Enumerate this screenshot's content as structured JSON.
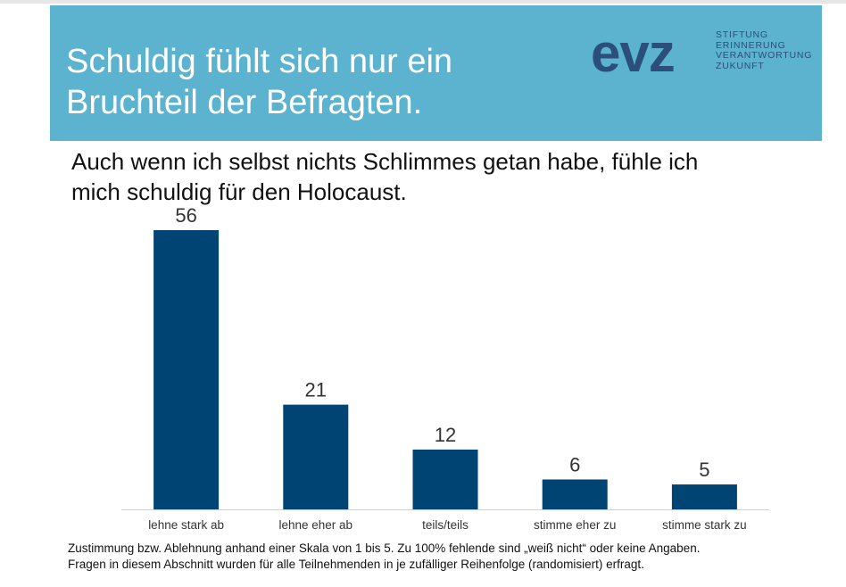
{
  "header": {
    "title": "Schuldig fühlt sich nur ein\nBruchteil der Befragten.",
    "background_color": "#5bb3d0",
    "logo": {
      "word": "evz",
      "lines": [
        "STIFTUNG",
        "ERINNERUNG",
        "VERANTWORTUNG",
        "ZUKUNFT"
      ]
    }
  },
  "chart_data": {
    "type": "bar",
    "title": "Auch wenn ich selbst nichts Schlimmes getan habe, fühle ich\nmich schuldig für den Holocaust.",
    "categories": [
      "lehne stark ab",
      "lehne eher ab",
      "teils/teils",
      "stimme eher zu",
      "stimme stark zu"
    ],
    "values": [
      56,
      21,
      12,
      6,
      5
    ],
    "data_labels": [
      "56",
      "21",
      "12",
      "6",
      "5"
    ],
    "xlabel": "",
    "ylabel": "",
    "ylim": [
      0,
      56
    ],
    "grid": false,
    "bar_color": "#004474"
  },
  "footnote": {
    "line1": "Zustimmung bzw. Ablehnung anhand einer Skala von 1 bis 5. Zu 100% fehlende sind „weiß nicht“ oder keine Angaben.",
    "line2": "Fragen in diesem Abschnitt wurden für alle Teilnehmenden in je zufälliger Reihenfolge (randomisiert) erfragt."
  }
}
